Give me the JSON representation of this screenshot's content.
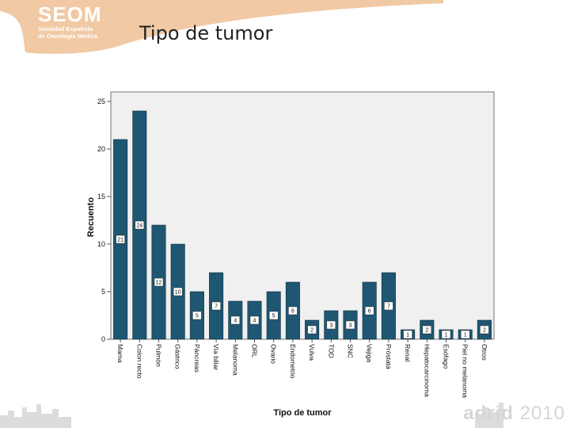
{
  "header": {
    "logo_main": "SEOM",
    "logo_line1": "Sociedad Española",
    "logo_line2": "de Oncología Médica",
    "slide_title": "Tipo de tumor"
  },
  "footer": {
    "brand_left": "adrid",
    "brand_year": "2010"
  },
  "colors": {
    "bar": "#1f5672",
    "plot_bg": "#f0f0f0",
    "logo": "#f1c9a4"
  },
  "chart_data": {
    "type": "bar",
    "title": "",
    "xlabel": "Tipo de tumor",
    "ylabel": "Recuento",
    "ylim": [
      0,
      26
    ],
    "yticks": [
      0,
      5,
      10,
      15,
      20,
      25
    ],
    "grid": false,
    "categories": [
      "Mama",
      "Colon recto",
      "Pulmón",
      "Gástrico",
      "Páncreas",
      "Vía biliar",
      "Melanoma",
      "ORL",
      "Ovario",
      "Endometrio",
      "Vulva",
      "TOD",
      "SNC",
      "Vejiga",
      "Próstata",
      "Renal",
      "Hepatocarcinoma",
      "Esófago",
      "Piel no melanoma",
      "Otros"
    ],
    "values": [
      21,
      24,
      12,
      10,
      5,
      7,
      4,
      4,
      5,
      6,
      2,
      3,
      3,
      6,
      7,
      1,
      2,
      1,
      1,
      2
    ],
    "data_labels": [
      "21",
      "24",
      "12",
      "10",
      "5",
      "7",
      "4",
      "4",
      "5",
      "6",
      "2",
      "3",
      "3",
      "6",
      "7",
      "1",
      "2",
      "1",
      "1",
      "2"
    ]
  }
}
